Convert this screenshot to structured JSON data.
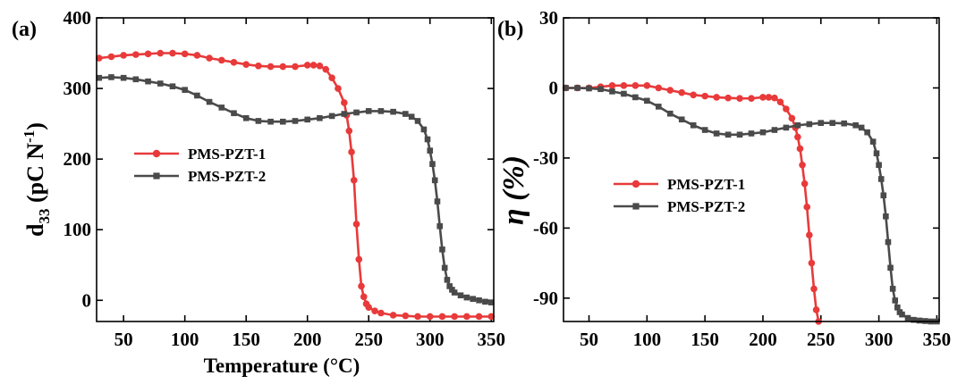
{
  "chart_data": [
    {
      "type": "line",
      "panel_label": "(a)",
      "xlabel": "Temperature (°C)",
      "ylabel_main": "d",
      "ylabel_sub": "33",
      "ylabel_unit": " (pC N",
      "ylabel_exp": "-1",
      "ylabel_close": ")",
      "xlim": [
        28,
        352
      ],
      "ylim": [
        -30,
        400
      ],
      "xticks": [
        50,
        100,
        150,
        200,
        250,
        300,
        350
      ],
      "yticks": [
        0,
        100,
        200,
        300,
        400
      ],
      "legend": [
        "PMS-PZT-1",
        "PMS-PZT-2"
      ],
      "series": [
        {
          "name": "PMS-PZT-1",
          "color": "#e83a3a",
          "marker": "circle",
          "x": [
            30,
            40,
            50,
            60,
            70,
            80,
            90,
            100,
            110,
            120,
            130,
            140,
            150,
            160,
            170,
            180,
            190,
            200,
            205,
            210,
            215,
            220,
            225,
            230,
            232,
            234,
            236,
            238,
            240,
            242,
            244,
            246,
            248,
            250,
            255,
            260,
            270,
            280,
            290,
            300,
            310,
            320,
            330,
            340,
            350
          ],
          "y": [
            343,
            345,
            347,
            348,
            349,
            350,
            350,
            349,
            347,
            343,
            340,
            337,
            334,
            332,
            331,
            331,
            331,
            333,
            333,
            332,
            327,
            315,
            300,
            280,
            262,
            240,
            210,
            170,
            108,
            58,
            20,
            5,
            -5,
            -10,
            -15,
            -18,
            -21,
            -22,
            -23,
            -23,
            -23,
            -23,
            -23,
            -23,
            -23
          ]
        },
        {
          "name": "PMS-PZT-2",
          "color": "#4a4a4a",
          "marker": "square",
          "x": [
            30,
            40,
            50,
            60,
            70,
            80,
            90,
            100,
            110,
            120,
            130,
            140,
            150,
            160,
            170,
            180,
            190,
            200,
            210,
            220,
            230,
            240,
            250,
            260,
            270,
            280,
            285,
            290,
            295,
            298,
            300,
            302,
            304,
            306,
            308,
            310,
            312,
            314,
            316,
            318,
            320,
            325,
            330,
            335,
            340,
            345,
            350
          ],
          "y": [
            315,
            316,
            315,
            313,
            310,
            307,
            303,
            298,
            290,
            281,
            273,
            265,
            258,
            254,
            253,
            253,
            254,
            256,
            258,
            261,
            264,
            266,
            268,
            268,
            267,
            264,
            260,
            254,
            242,
            228,
            212,
            193,
            170,
            140,
            105,
            72,
            46,
            29,
            20,
            15,
            11,
            7,
            4,
            2,
            0,
            -2,
            -3
          ]
        }
      ]
    },
    {
      "type": "line",
      "panel_label": "(b)",
      "xlabel": "",
      "ylabel_main": "η (%)",
      "xlim": [
        28,
        352
      ],
      "ylim": [
        -100,
        30
      ],
      "xticks": [
        50,
        100,
        150,
        200,
        250,
        300,
        350
      ],
      "yticks": [
        -90,
        -60,
        -30,
        0,
        30
      ],
      "legend": [
        "PMS-PZT-1",
        "PMS-PZT-2"
      ],
      "series": [
        {
          "name": "PMS-PZT-1",
          "color": "#e83a3a",
          "marker": "circle",
          "x": [
            30,
            40,
            50,
            60,
            70,
            80,
            90,
            100,
            110,
            120,
            130,
            140,
            150,
            160,
            170,
            180,
            190,
            200,
            205,
            210,
            215,
            220,
            225,
            228,
            230,
            232,
            234,
            236,
            238,
            240,
            242,
            244,
            246,
            248
          ],
          "y": [
            0,
            0,
            0,
            0.5,
            1,
            1,
            1,
            1,
            0,
            -1,
            -2,
            -3,
            -3.5,
            -4,
            -4.3,
            -4.5,
            -4.5,
            -4,
            -4,
            -4.3,
            -6,
            -9,
            -13,
            -17,
            -21,
            -26,
            -33,
            -41,
            -51,
            -63,
            -75,
            -86,
            -95,
            -100
          ]
        },
        {
          "name": "PMS-PZT-2",
          "color": "#4a4a4a",
          "marker": "square",
          "x": [
            30,
            40,
            50,
            60,
            70,
            80,
            90,
            100,
            110,
            120,
            130,
            140,
            150,
            160,
            170,
            180,
            190,
            200,
            210,
            220,
            230,
            240,
            250,
            260,
            270,
            280,
            285,
            290,
            295,
            298,
            300,
            302,
            304,
            306,
            308,
            310,
            312,
            314,
            316,
            318,
            320,
            325,
            330,
            335,
            340,
            345,
            350
          ],
          "y": [
            0,
            0,
            -0.2,
            -0.5,
            -1.5,
            -2.5,
            -4,
            -5.5,
            -8,
            -11,
            -13.5,
            -16,
            -18,
            -19.5,
            -20,
            -20,
            -19.5,
            -19,
            -18,
            -17,
            -16,
            -15.5,
            -15,
            -15,
            -15.2,
            -16,
            -17,
            -19,
            -23,
            -28,
            -33,
            -39,
            -46,
            -55,
            -66,
            -77,
            -86,
            -91,
            -94,
            -96,
            -97,
            -98.5,
            -99.3,
            -99.6,
            -99.8,
            -100,
            -100
          ]
        }
      ]
    }
  ]
}
